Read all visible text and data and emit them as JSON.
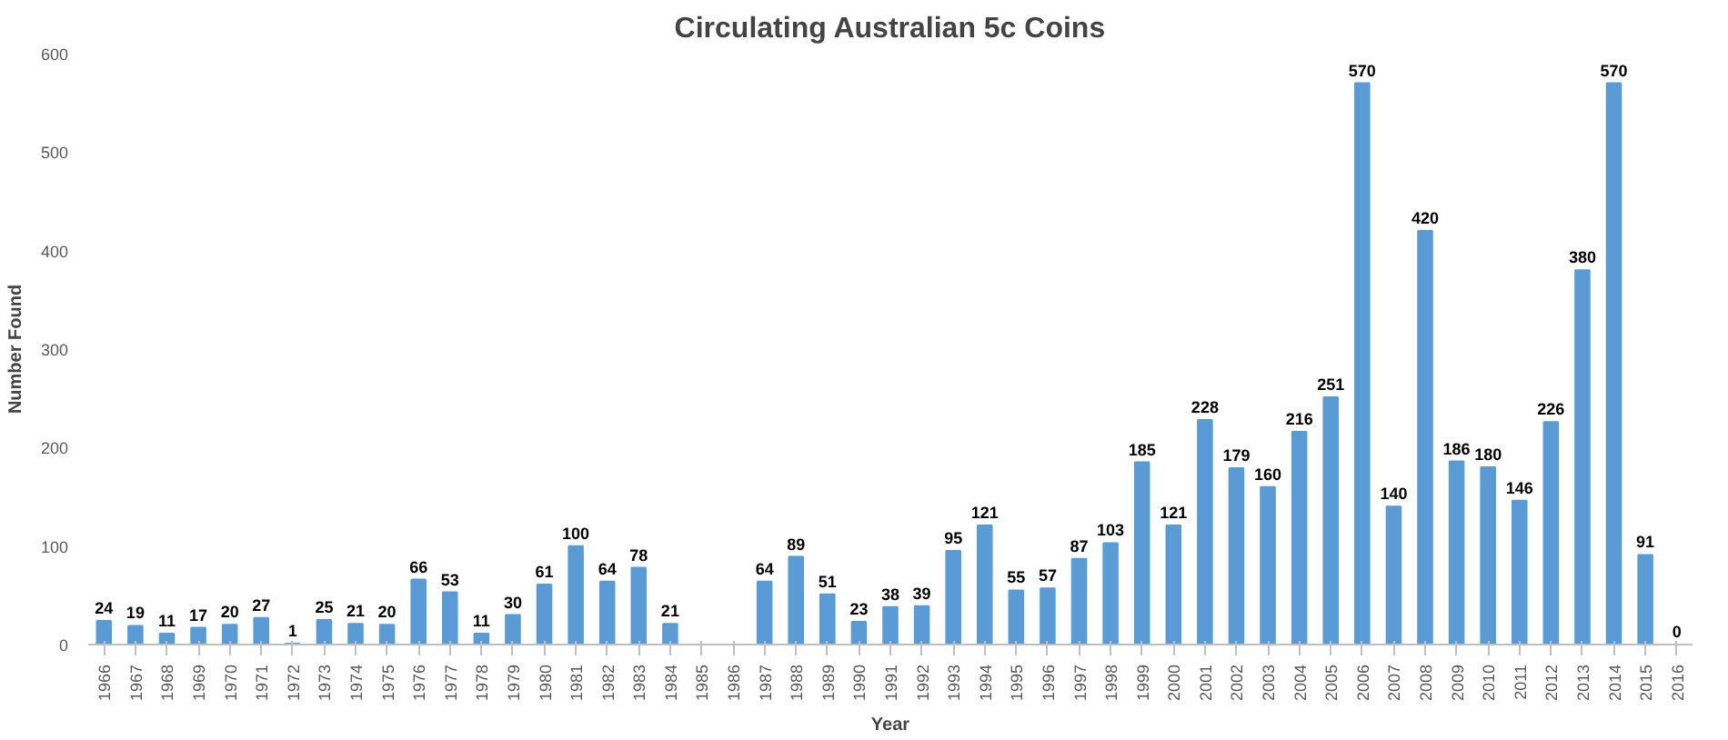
{
  "chart_data": {
    "type": "bar",
    "title": "Circulating Australian 5c Coins",
    "xlabel": "Year",
    "ylabel": "Number Found",
    "categories": [
      "1966",
      "1967",
      "1968",
      "1969",
      "1970",
      "1971",
      "1972",
      "1973",
      "1974",
      "1975",
      "1976",
      "1977",
      "1978",
      "1979",
      "1980",
      "1981",
      "1982",
      "1983",
      "1984",
      "1985",
      "1986",
      "1987",
      "1988",
      "1989",
      "1990",
      "1991",
      "1992",
      "1993",
      "1994",
      "1995",
      "1996",
      "1997",
      "1998",
      "1999",
      "2000",
      "2001",
      "2002",
      "2003",
      "2004",
      "2005",
      "2006",
      "2007",
      "2008",
      "2009",
      "2010",
      "2011",
      "2012",
      "2013",
      "2014",
      "2015",
      "2016"
    ],
    "values": [
      24,
      19,
      11,
      17,
      20,
      27,
      1,
      25,
      21,
      20,
      66,
      53,
      11,
      30,
      61,
      100,
      64,
      78,
      21,
      null,
      null,
      64,
      89,
      51,
      23,
      38,
      39,
      95,
      121,
      55,
      57,
      87,
      103,
      185,
      121,
      228,
      179,
      160,
      216,
      251,
      570,
      140,
      420,
      186,
      180,
      146,
      226,
      380,
      570,
      91,
      0
    ],
    "color": "#5b9bd5",
    "ylim": [
      0,
      600
    ],
    "yticks": [
      0,
      100,
      200,
      300,
      400,
      500,
      600
    ],
    "grid": false,
    "data_labels": true
  }
}
